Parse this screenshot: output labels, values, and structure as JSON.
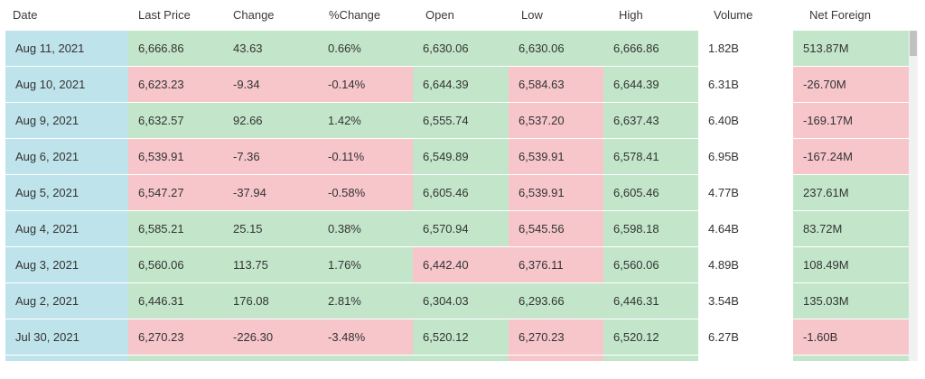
{
  "colors": {
    "date_bg": "#bfe3eb",
    "up_bg": "#c3e6cb",
    "down_bg": "#f6c6cb",
    "neutral_bg": "#ffffff"
  },
  "columns": [
    {
      "key": "date",
      "label": "Date"
    },
    {
      "key": "last_price",
      "label": "Last Price"
    },
    {
      "key": "change",
      "label": "Change"
    },
    {
      "key": "pct_change",
      "label": "%Change"
    },
    {
      "key": "open",
      "label": "Open"
    },
    {
      "key": "low",
      "label": "Low"
    },
    {
      "key": "high",
      "label": "High"
    },
    {
      "key": "volume",
      "label": "Volume"
    },
    {
      "key": "net_foreign",
      "label": "Net Foreign"
    }
  ],
  "rows": [
    {
      "date": "Aug 11, 2021",
      "last_price": "6,666.86",
      "change": "43.63",
      "pct_change": "0.66%",
      "open": "6,630.06",
      "low": "6,630.06",
      "high": "6,666.86",
      "volume": "1.82B",
      "net_foreign": "513.87M",
      "states": {
        "date": "date",
        "last_price": "up",
        "change": "up",
        "pct_change": "up",
        "open": "up",
        "low": "up",
        "high": "up",
        "volume": "neutral",
        "net_foreign": "up"
      }
    },
    {
      "date": "Aug 10, 2021",
      "last_price": "6,623.23",
      "change": "-9.34",
      "pct_change": "-0.14%",
      "open": "6,644.39",
      "low": "6,584.63",
      "high": "6,644.39",
      "volume": "6.31B",
      "net_foreign": "-26.70M",
      "states": {
        "date": "date",
        "last_price": "down",
        "change": "down",
        "pct_change": "down",
        "open": "up",
        "low": "down",
        "high": "up",
        "volume": "neutral",
        "net_foreign": "down"
      }
    },
    {
      "date": "Aug 9, 2021",
      "last_price": "6,632.57",
      "change": "92.66",
      "pct_change": "1.42%",
      "open": "6,555.74",
      "low": "6,537.20",
      "high": "6,637.43",
      "volume": "6.40B",
      "net_foreign": "-169.17M",
      "states": {
        "date": "date",
        "last_price": "up",
        "change": "up",
        "pct_change": "up",
        "open": "up",
        "low": "down",
        "high": "up",
        "volume": "neutral",
        "net_foreign": "down"
      }
    },
    {
      "date": "Aug 6, 2021",
      "last_price": "6,539.91",
      "change": "-7.36",
      "pct_change": "-0.11%",
      "open": "6,549.89",
      "low": "6,539.91",
      "high": "6,578.41",
      "volume": "6.95B",
      "net_foreign": "-167.24M",
      "states": {
        "date": "date",
        "last_price": "down",
        "change": "down",
        "pct_change": "down",
        "open": "up",
        "low": "down",
        "high": "up",
        "volume": "neutral",
        "net_foreign": "down"
      }
    },
    {
      "date": "Aug 5, 2021",
      "last_price": "6,547.27",
      "change": "-37.94",
      "pct_change": "-0.58%",
      "open": "6,605.46",
      "low": "6,539.91",
      "high": "6,605.46",
      "volume": "4.77B",
      "net_foreign": "237.61M",
      "states": {
        "date": "date",
        "last_price": "down",
        "change": "down",
        "pct_change": "down",
        "open": "up",
        "low": "down",
        "high": "up",
        "volume": "neutral",
        "net_foreign": "up"
      }
    },
    {
      "date": "Aug 4, 2021",
      "last_price": "6,585.21",
      "change": "25.15",
      "pct_change": "0.38%",
      "open": "6,570.94",
      "low": "6,545.56",
      "high": "6,598.18",
      "volume": "4.64B",
      "net_foreign": "83.72M",
      "states": {
        "date": "date",
        "last_price": "up",
        "change": "up",
        "pct_change": "up",
        "open": "up",
        "low": "down",
        "high": "up",
        "volume": "neutral",
        "net_foreign": "up"
      }
    },
    {
      "date": "Aug 3, 2021",
      "last_price": "6,560.06",
      "change": "113.75",
      "pct_change": "1.76%",
      "open": "6,442.40",
      "low": "6,376.11",
      "high": "6,560.06",
      "volume": "4.89B",
      "net_foreign": "108.49M",
      "states": {
        "date": "date",
        "last_price": "up",
        "change": "up",
        "pct_change": "up",
        "open": "down",
        "low": "down",
        "high": "up",
        "volume": "neutral",
        "net_foreign": "up"
      }
    },
    {
      "date": "Aug 2, 2021",
      "last_price": "6,446.31",
      "change": "176.08",
      "pct_change": "2.81%",
      "open": "6,304.03",
      "low": "6,293.66",
      "high": "6,446.31",
      "volume": "3.54B",
      "net_foreign": "135.03M",
      "states": {
        "date": "date",
        "last_price": "up",
        "change": "up",
        "pct_change": "up",
        "open": "up",
        "low": "up",
        "high": "up",
        "volume": "neutral",
        "net_foreign": "up"
      }
    },
    {
      "date": "Jul 30, 2021",
      "last_price": "6,270.23",
      "change": "-226.30",
      "pct_change": "-3.48%",
      "open": "6,520.12",
      "low": "6,270.23",
      "high": "6,520.12",
      "volume": "6.27B",
      "net_foreign": "-1.60B",
      "states": {
        "date": "date",
        "last_price": "down",
        "change": "down",
        "pct_change": "down",
        "open": "up",
        "low": "down",
        "high": "up",
        "volume": "neutral",
        "net_foreign": "down"
      }
    },
    {
      "date": "",
      "last_price": "",
      "change": "",
      "pct_change": "",
      "open": "",
      "low": "",
      "high": "",
      "volume": "",
      "net_foreign": "",
      "states": {
        "date": "date",
        "last_price": "up",
        "change": "up",
        "pct_change": "up",
        "open": "up",
        "low": "down",
        "high": "up",
        "volume": "neutral",
        "net_foreign": "up"
      }
    }
  ]
}
